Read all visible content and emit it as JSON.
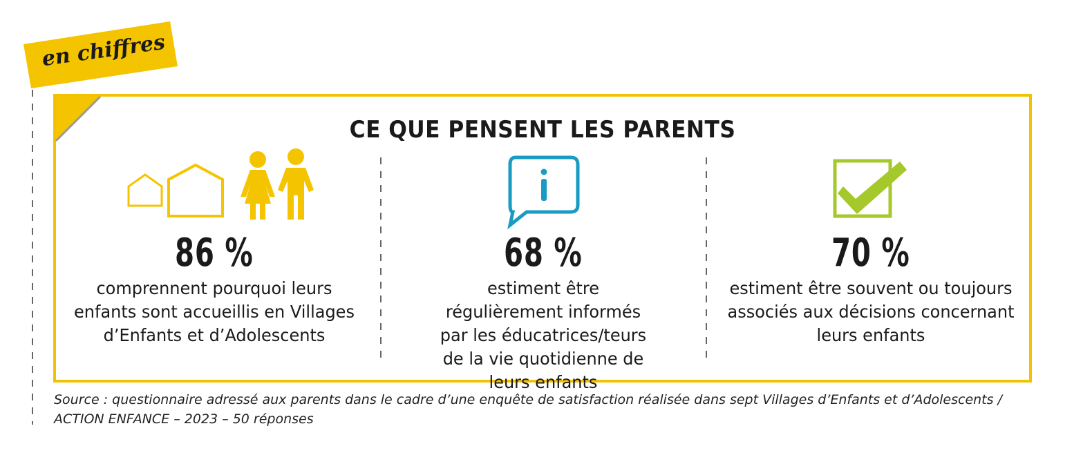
{
  "tag": "en chiffres",
  "title": "CE QUE PENSENT LES PARENTS",
  "stats": [
    {
      "value": "86 %",
      "text": "comprennent pourquoi leurs enfants sont accueillis en Villages d’Enfants et d’Adolescents"
    },
    {
      "value": "68 %",
      "text": "estiment être régulièrement informés par les éducatrices/teurs de la vie quotidienne de leurs enfants"
    },
    {
      "value": "70 %",
      "text": "estiment être souvent ou toujours associés aux décisions concernant leurs enfants"
    }
  ],
  "source": "Source : questionnaire adressé aux parents dans le cadre d’une enquête de satisfaction réalisée dans sept Villages d’Enfants et d’Adolescents / ACTION ENFANCE – 2023 – 50 réponses"
}
